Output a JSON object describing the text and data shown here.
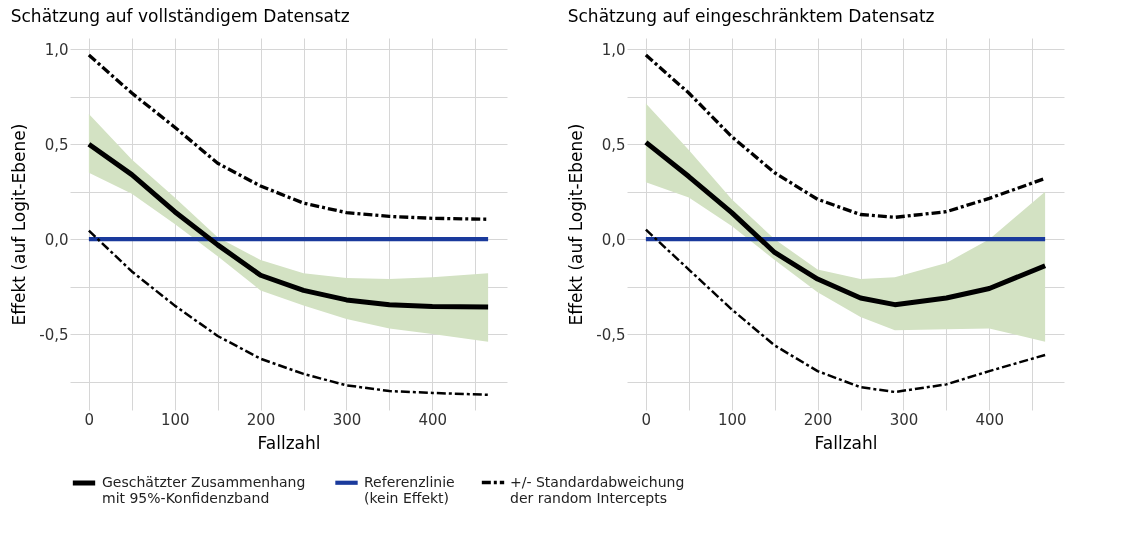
{
  "chart_data": [
    {
      "type": "line",
      "title": "Schätzung auf vollständigem Datensatz",
      "xlabel": "Fallzahl",
      "ylabel": "Effekt (auf Logit-Ebene)",
      "xlim": [
        -22,
        487
      ],
      "ylim": [
        -0.9,
        1.06
      ],
      "xticks": [
        0,
        {
          "value": 50,
          "label": null
        },
        100,
        {
          "value": 150,
          "label": null
        },
        200,
        {
          "value": 250,
          "label": null
        },
        300,
        {
          "value": 350,
          "label": null
        },
        400,
        {
          "value": 450,
          "label": null
        }
      ],
      "yticks": [
        {
          "value": -0.75,
          "label": null
        },
        {
          "value": -0.5,
          "label": "-0,5"
        },
        {
          "value": -0.25,
          "label": null
        },
        {
          "value": 0,
          "label": "0,0"
        },
        {
          "value": 0.25,
          "label": null
        },
        {
          "value": 0.5,
          "label": "0,5"
        },
        {
          "value": 0.75,
          "label": null
        },
        {
          "value": 1,
          "label": "1,0"
        }
      ],
      "grid": true,
      "legend": "bottom",
      "x": [
        0,
        50,
        100,
        150,
        200,
        250,
        300,
        350,
        400,
        465
      ],
      "series": [
        {
          "name": "Geschätzter Zusammenhang\nmit 95%-Konfidenzband",
          "color": "#000000",
          "values": [
            0.5,
            0.34,
            0.145,
            -0.03,
            -0.19,
            -0.27,
            -0.32,
            -0.345,
            -0.355,
            -0.357
          ],
          "lower": [
            0.35,
            0.24,
            0.08,
            -0.09,
            -0.27,
            -0.35,
            -0.42,
            -0.47,
            -0.5,
            -0.54
          ],
          "upper": [
            0.66,
            0.42,
            0.22,
            0.01,
            -0.11,
            -0.18,
            -0.205,
            -0.21,
            -0.2,
            -0.18
          ]
        },
        {
          "name": "+/- Standardabweichung\nder random Intercepts",
          "color": "#000000",
          "line_style": "dashed",
          "values": [
            0.97,
            0.77,
            0.59,
            0.4,
            0.28,
            0.19,
            0.14,
            0.12,
            0.11,
            0.105
          ]
        },
        {
          "color": "#000000",
          "line_style": "dashed",
          "values": [
            0.045,
            -0.17,
            -0.35,
            -0.51,
            -0.63,
            -0.71,
            -0.77,
            -0.8,
            -0.81,
            -0.82
          ]
        }
      ],
      "ref_lines": [
        {
          "axis": "y",
          "value": 0,
          "label": "Referenzlinie\n(kein Effekt)",
          "color": "#1a3a9c"
        }
      ]
    },
    {
      "type": "line",
      "title": "Schätzung auf eingeschränktem Datensatz",
      "xlabel": "Fallzahl",
      "ylabel": "Effekt (auf Logit-Ebene)",
      "xlim": [
        -22,
        487
      ],
      "ylim": [
        -0.9,
        1.06
      ],
      "xticks": [
        0,
        {
          "value": 50,
          "label": null
        },
        100,
        {
          "value": 150,
          "label": null
        },
        200,
        {
          "value": 250,
          "label": null
        },
        300,
        {
          "value": 350,
          "label": null
        },
        400,
        {
          "value": 450,
          "label": null
        }
      ],
      "yticks": [
        {
          "value": -0.75,
          "label": null
        },
        {
          "value": -0.5,
          "label": "-0,5"
        },
        {
          "value": -0.25,
          "label": null
        },
        {
          "value": 0,
          "label": "0,0"
        },
        {
          "value": 0.25,
          "label": null
        },
        {
          "value": 0.5,
          "label": "0,5"
        },
        {
          "value": 0.75,
          "label": null
        },
        {
          "value": 1,
          "label": "1,0"
        }
      ],
      "grid": true,
      "x": [
        0,
        50,
        100,
        150,
        200,
        250,
        290,
        350,
        400,
        465
      ],
      "series": [
        {
          "color": "#000000",
          "values": [
            0.51,
            0.33,
            0.14,
            -0.07,
            -0.21,
            -0.31,
            -0.345,
            -0.31,
            -0.26,
            -0.14
          ],
          "lower": [
            0.3,
            0.22,
            0.07,
            -0.11,
            -0.28,
            -0.41,
            -0.48,
            -0.475,
            -0.47,
            -0.54
          ],
          "upper": [
            0.715,
            0.47,
            0.21,
            0.0,
            -0.16,
            -0.21,
            -0.2,
            -0.125,
            0.0,
            0.25
          ]
        },
        {
          "color": "#000000",
          "line_style": "dashed",
          "values": [
            0.97,
            0.77,
            0.54,
            0.35,
            0.21,
            0.13,
            0.115,
            0.145,
            0.215,
            0.32
          ]
        },
        {
          "color": "#000000",
          "line_style": "dashed",
          "values": [
            0.05,
            -0.16,
            -0.37,
            -0.56,
            -0.695,
            -0.78,
            -0.805,
            -0.765,
            -0.695,
            -0.61
          ]
        }
      ],
      "ref_lines": [
        {
          "axis": "y",
          "value": 0,
          "color": "#1a3a9c"
        }
      ]
    }
  ]
}
